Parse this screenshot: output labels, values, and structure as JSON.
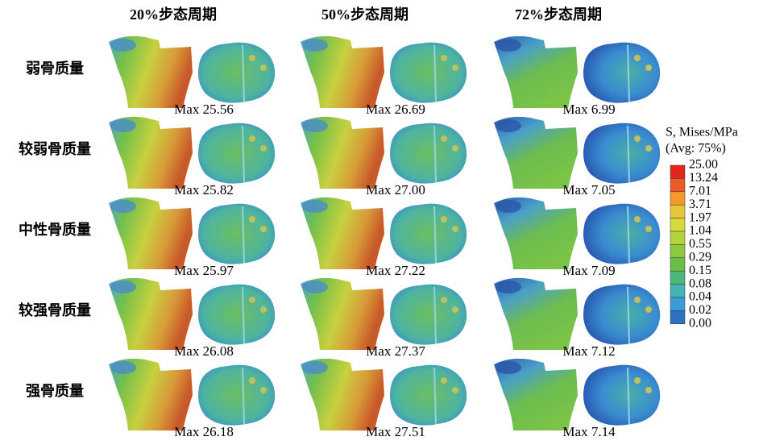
{
  "column_headers": [
    "20%步态周期",
    "50%步态周期",
    "72%步态周期"
  ],
  "rows": [
    {
      "label": "弱骨质量",
      "max_labels": [
        "Max 25.56",
        "Max 26.69",
        "Max 6.99"
      ]
    },
    {
      "label": "较弱骨质量",
      "max_labels": [
        "Max 25.82",
        "Max 27.00",
        "Max 7.05"
      ]
    },
    {
      "label": "中性骨质量",
      "max_labels": [
        "Max 25.97",
        "Max 27.22",
        "Max 7.09"
      ]
    },
    {
      "label": "较强骨质量",
      "max_labels": [
        "Max 26.08",
        "Max 27.37",
        "Max 7.12"
      ]
    },
    {
      "label": "强骨质量",
      "max_labels": [
        "Max 26.18",
        "Max 27.51",
        "Max 7.14"
      ]
    }
  ],
  "legend": {
    "title": "S, Mises/MPa",
    "subtitle": "(Avg: 75%)",
    "labels": [
      "25.00",
      "13.24",
      "7.01",
      "3.71",
      "1.97",
      "1.04",
      "0.55",
      "0.29",
      "0.15",
      "0.08",
      "0.04",
      "0.02",
      "0.00"
    ],
    "colors": [
      "#e42420",
      "#ec5a26",
      "#f29a2e",
      "#e8c63a",
      "#d6d83c",
      "#b2d23e",
      "#8ec83e",
      "#68be48",
      "#4eb87a",
      "#44b4b4",
      "#3a9cd8",
      "#2c72c4",
      "#2050a0"
    ]
  }
}
